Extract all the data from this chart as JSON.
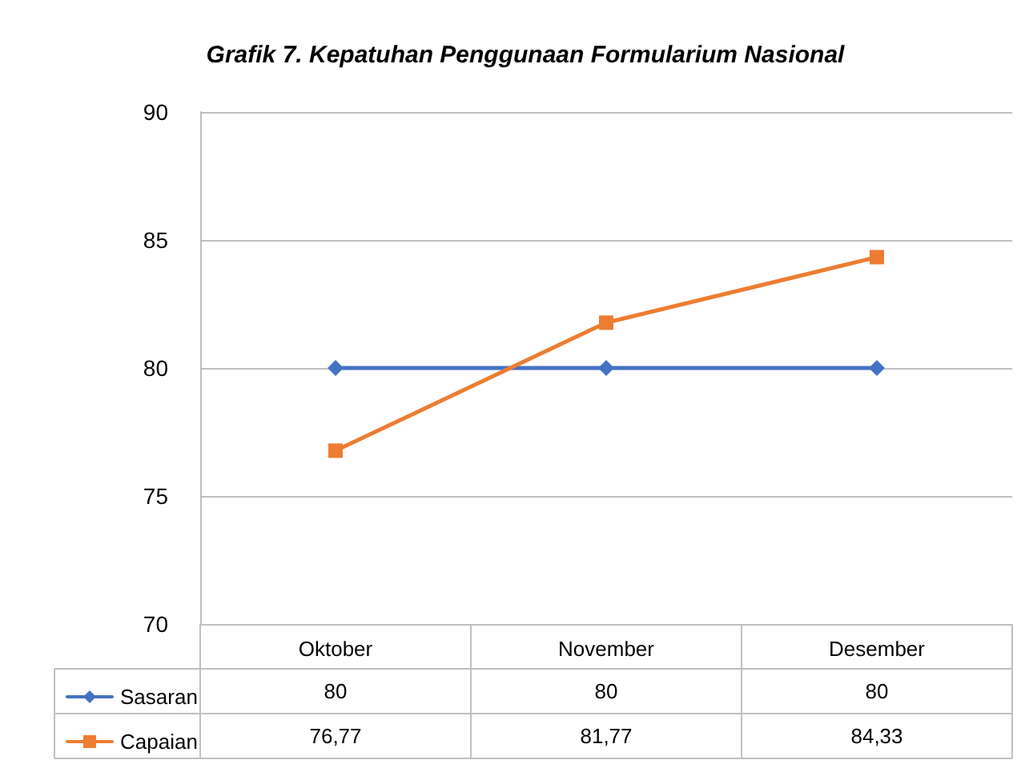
{
  "chart_data": {
    "type": "line",
    "title": "Grafik 7. Kepatuhan Penggunaan Formularium Nasional",
    "categories": [
      "Oktober",
      "November",
      "Desember"
    ],
    "series": [
      {
        "name": "Sasaran",
        "color": "#4472c4",
        "marker": "diamond",
        "values": [
          80,
          80,
          80
        ],
        "value_labels": [
          "80",
          "80",
          "80"
        ]
      },
      {
        "name": "Capaian",
        "color": "#ed7d31",
        "marker": "square",
        "values": [
          76.77,
          81.77,
          84.33
        ],
        "value_labels": [
          "76,77",
          "81,77",
          "84,33"
        ]
      }
    ],
    "ylim": [
      70,
      90
    ],
    "yticks": [
      70,
      75,
      80,
      85,
      90
    ],
    "grid": "y",
    "legend": "bottom"
  }
}
